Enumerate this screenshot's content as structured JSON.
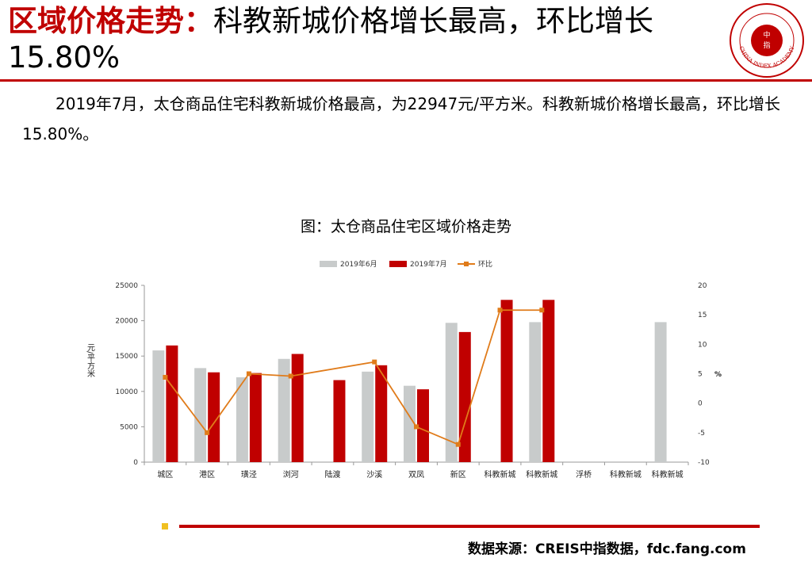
{
  "header": {
    "title_accent": "区域价格走势：",
    "title_rest": "科教新城价格增长最高，环比增长15.80%",
    "logo_text": "CHINA INDEX ACADEMY",
    "logo_center": "中 指"
  },
  "summary": "2019年7月，太仓商品住宅科教新城价格最高，为22947元/平方米。科教新城价格增长最高，环比增长15.80%。",
  "footer": {
    "source": "数据来源：CREIS中指数据，fdc.fang.com"
  },
  "colors": {
    "accent": "#c00000",
    "jun_bar": "#c8cbcb",
    "jul_bar": "#c00000",
    "mom_line": "#e07b1a"
  },
  "chart_data": {
    "type": "bar",
    "title": "图：太仓商品住宅区域价格走势",
    "categories": [
      "城区",
      "港区",
      "璜泾",
      "浏河",
      "陆渡",
      "沙溪",
      "双凤",
      "新区",
      "科教新城",
      "科教新城",
      "浮桥",
      "科教新城",
      "科教新城"
    ],
    "series": [
      {
        "name": "2019年6月",
        "type": "bar",
        "axis": "left",
        "values": [
          15800,
          13300,
          12000,
          14600,
          null,
          12800,
          10800,
          19700,
          null,
          19800,
          null,
          null,
          19800
        ]
      },
      {
        "name": "2019年7月",
        "type": "bar",
        "axis": "left",
        "values": [
          16500,
          12700,
          12600,
          15300,
          11600,
          13700,
          10300,
          18400,
          22947,
          22947,
          null,
          null,
          null
        ]
      },
      {
        "name": "环比",
        "type": "line",
        "axis": "right",
        "values": [
          4.4,
          -5.0,
          5.0,
          4.6,
          null,
          7.0,
          -4.0,
          -7.0,
          15.8,
          15.8,
          null,
          null,
          null
        ]
      }
    ],
    "ylabel": "元/平方米",
    "y2label": "%",
    "ylim": [
      0,
      25000
    ],
    "yticks": [
      0,
      5000,
      10000,
      15000,
      20000,
      25000
    ],
    "y2lim": [
      -10,
      20
    ],
    "y2ticks": [
      -10,
      -5,
      0,
      5,
      10,
      15,
      20
    ],
    "legend_position": "top",
    "grid": false
  }
}
